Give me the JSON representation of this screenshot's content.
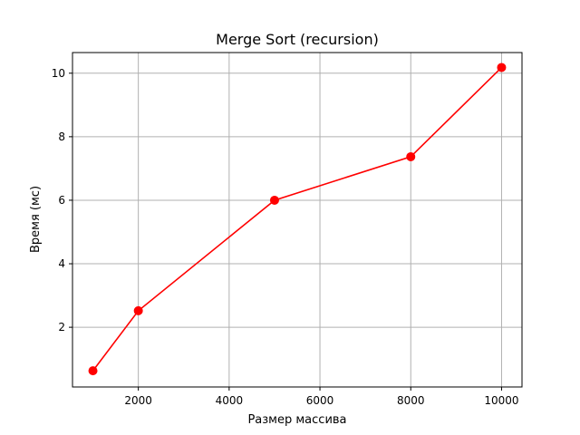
{
  "chart_data": {
    "type": "line",
    "title": "Merge Sort (recursion)",
    "xlabel": "Размер массива",
    "ylabel": "Время (мс)",
    "xlim": [
      550,
      10450
    ],
    "ylim": [
      0.12,
      10.65
    ],
    "xticks": [
      2000,
      4000,
      6000,
      8000,
      10000
    ],
    "yticks": [
      2,
      4,
      6,
      8,
      10
    ],
    "grid": true,
    "series": [
      {
        "color": "#ff0000",
        "marker": "circle",
        "x": [
          1000,
          2000,
          5000,
          8000,
          10000
        ],
        "y": [
          0.63,
          2.52,
          6.0,
          7.37,
          10.18
        ]
      }
    ]
  }
}
